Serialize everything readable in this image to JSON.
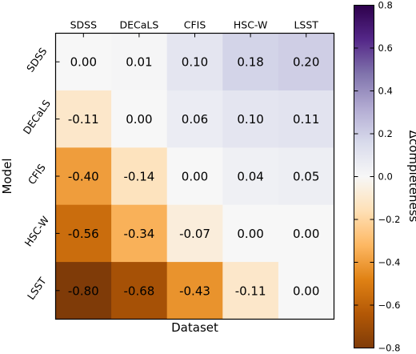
{
  "chart_data": {
    "type": "heatmap",
    "title": "",
    "xlabel": "Dataset",
    "ylabel": "Model",
    "x_categories": [
      "SDSS",
      "DECaLS",
      "CFIS",
      "HSC-W",
      "LSST"
    ],
    "y_categories": [
      "SDSS",
      "DECaLS",
      "CFIS",
      "HSC-W",
      "LSST"
    ],
    "values": [
      [
        0.0,
        0.01,
        0.1,
        0.18,
        0.2
      ],
      [
        -0.11,
        0.0,
        0.06,
        0.1,
        0.11
      ],
      [
        -0.4,
        -0.14,
        0.0,
        0.04,
        0.05
      ],
      [
        -0.56,
        -0.34,
        -0.07,
        0.0,
        0.0
      ],
      [
        -0.8,
        -0.68,
        -0.43,
        -0.11,
        0.0
      ]
    ],
    "value_labels": [
      [
        "0.00",
        "0.01",
        "0.10",
        "0.18",
        "0.20"
      ],
      [
        "-0.11",
        "0.00",
        "0.06",
        "0.10",
        "0.11"
      ],
      [
        "-0.40",
        "-0.14",
        "0.00",
        "0.04",
        "0.05"
      ],
      [
        "-0.56",
        "-0.34",
        "-0.07",
        "0.00",
        "0.00"
      ],
      [
        "-0.80",
        "-0.68",
        "-0.43",
        "-0.11",
        "0.00"
      ]
    ],
    "colorbar": {
      "label": "Δcompleteness",
      "range": [
        -0.8,
        0.8
      ],
      "ticks": [
        0.8,
        0.6,
        0.4,
        0.2,
        0.0,
        -0.2,
        -0.4,
        -0.6,
        -0.8
      ],
      "tick_labels": [
        "0.8",
        "0.6",
        "0.4",
        "0.2",
        "0.0",
        "−0.2",
        "−0.4",
        "−0.6",
        "−0.8"
      ],
      "colormap": "PuOr",
      "colors": {
        "negative_end": "#7f3b08",
        "neutral": "#f7f7f7",
        "positive_end": "#2d004b"
      }
    },
    "x_ticks_position": "top",
    "grid": false
  }
}
